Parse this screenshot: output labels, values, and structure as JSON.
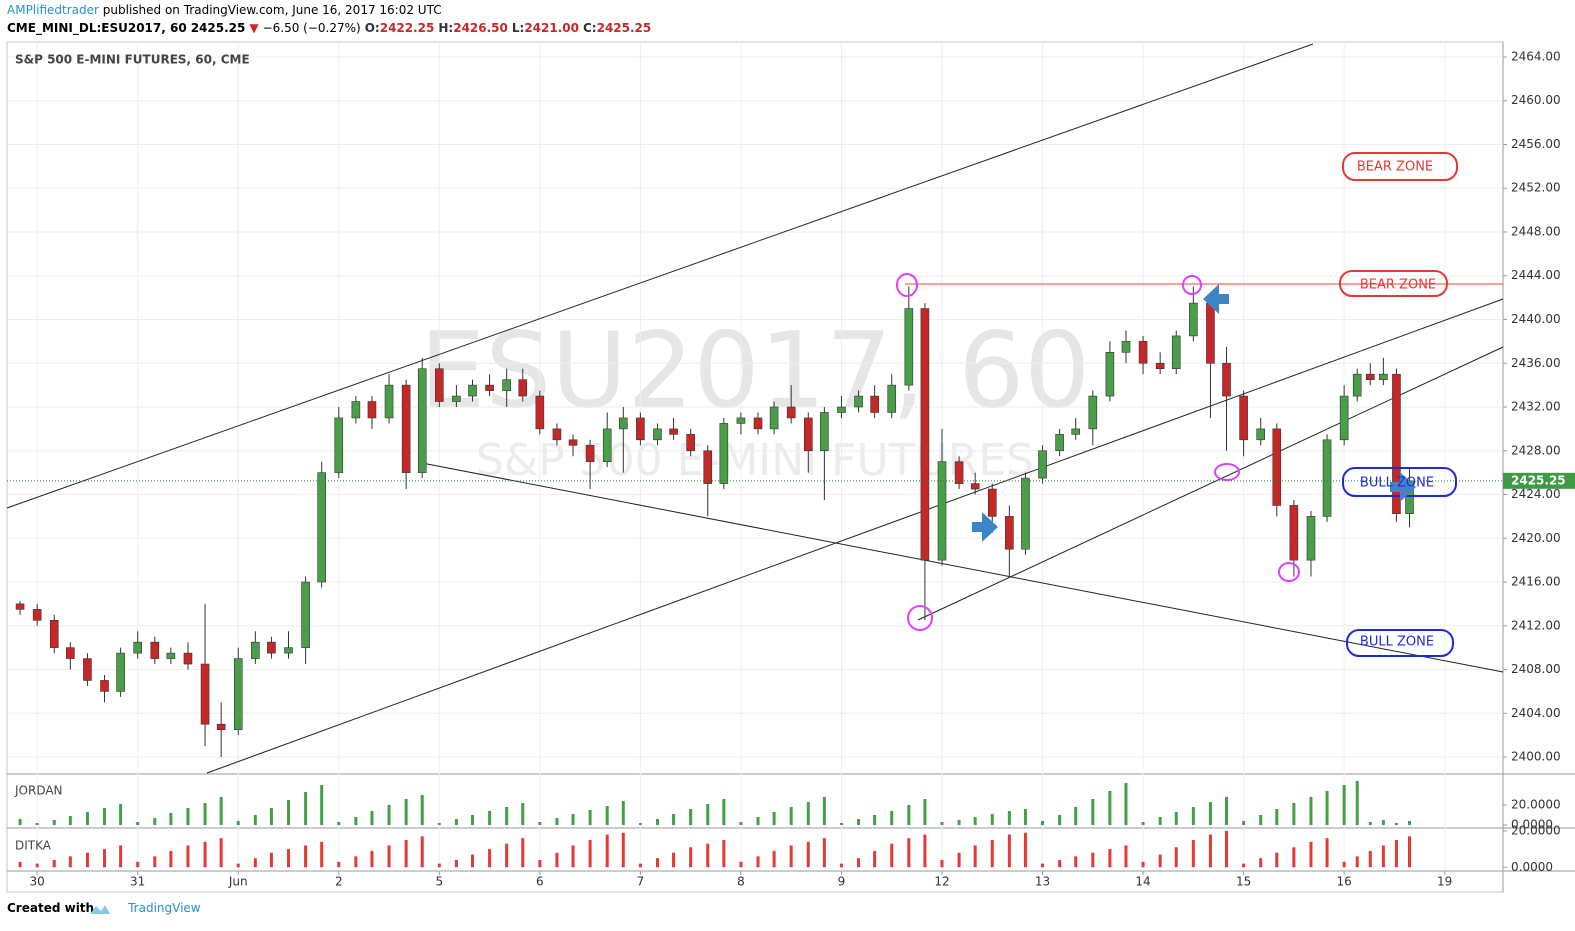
{
  "header": {
    "author": "AMPlifiedtrader",
    "published": "published on TradingView.com, June 16, 2017 16:02 UTC",
    "symbol": "CME_MINI_DL:ESU2017, 60",
    "last": "2425.25",
    "change_arrow": "▼",
    "change": "−6.50 (−0.27%)",
    "open_label": "O:",
    "open": "2422.25",
    "high_label": "H:",
    "high": "2426.50",
    "low_label": "L:",
    "low": "2421.00",
    "close_label": "C:",
    "close": "2425.25"
  },
  "chart_data": [
    {
      "type": "candlestick",
      "title": "S&P 500 E-MINI FUTURES, 60, CME",
      "watermark": "ESU2017, 60",
      "watermark_sub": "S&P 500 E-MINI FUTURES",
      "annotations": [
        "BEAR ZONE",
        "BEAR ZONE",
        "BULL ZONE",
        "BULL ZONE"
      ],
      "x": [
        -0.17,
        0,
        0.17,
        0.33,
        0.5,
        0.67,
        0.83,
        1,
        1.17,
        1.33,
        1.5,
        1.67,
        1.83,
        2,
        2.17,
        2.33,
        2.5,
        2.67,
        2.83,
        3,
        3.17,
        3.33,
        3.5,
        3.67,
        3.83,
        4,
        4.17,
        4.33,
        4.5,
        4.67,
        4.83,
        5,
        5.17,
        5.33,
        5.5,
        5.67,
        5.83,
        6,
        6.17,
        6.33,
        6.5,
        6.67,
        6.83,
        7,
        7.17,
        7.33,
        7.5,
        7.67,
        7.83,
        8,
        8.17,
        8.33,
        8.5,
        8.67,
        8.83,
        9,
        9.17,
        9.33,
        9.5,
        9.67,
        9.83,
        10,
        10.17,
        10.33,
        10.5,
        10.67,
        10.83,
        11,
        11.17,
        11.33,
        11.5,
        11.67,
        11.83,
        12,
        12.17,
        12.33,
        12.5,
        12.67,
        12.83,
        13,
        13.13,
        13.26,
        13.39,
        13.52,
        13.65
      ],
      "open": [
        2414,
        2413.5,
        2412.5,
        2410,
        2409,
        2407,
        2406,
        2409.5,
        2410.5,
        2409,
        2409.5,
        2408.5,
        2403,
        2402.5,
        2409,
        2410.5,
        2409.5,
        2410,
        2416,
        2426,
        2431,
        2432.5,
        2431,
        2434,
        2426,
        2435.5,
        2432.5,
        2433,
        2434,
        2433.5,
        2434.5,
        2433,
        2430,
        2429,
        2428.5,
        2427,
        2430,
        2431,
        2429,
        2430,
        2429.5,
        2428,
        2425,
        2430.5,
        2431,
        2430,
        2432,
        2431,
        2428,
        2431.5,
        2432,
        2433,
        2431.5,
        2434,
        2441,
        2418,
        2427,
        2425,
        2424.5,
        2422,
        2419,
        2425.5,
        2428,
        2429.5,
        2430,
        2433,
        2437,
        2438,
        2436,
        2435.5,
        2438.5,
        2441.5,
        2436,
        2433,
        2429,
        2430,
        2423,
        2418,
        2422,
        2429,
        2433,
        2435,
        2434.5,
        2435,
        2422.25
      ],
      "high": [
        2414.25,
        2414,
        2413,
        2410.5,
        2409.5,
        2407.5,
        2410,
        2411.5,
        2411,
        2410,
        2410.5,
        2414,
        2405,
        2410,
        2411.5,
        2411,
        2411.5,
        2416.5,
        2427,
        2432,
        2433,
        2433,
        2435,
        2434.5,
        2436.5,
        2436,
        2434,
        2434.5,
        2435,
        2435.5,
        2435.5,
        2433.5,
        2430.5,
        2429.5,
        2429,
        2431.5,
        2432,
        2431.5,
        2430.5,
        2431,
        2430,
        2428.5,
        2431,
        2431.5,
        2431.5,
        2432.5,
        2434,
        2431.5,
        2432,
        2433,
        2433.5,
        2434,
        2435,
        2443,
        2441.5,
        2430,
        2427.5,
        2426,
        2425,
        2423,
        2426,
        2428.5,
        2430,
        2431,
        2433.5,
        2438,
        2439,
        2438.5,
        2437,
        2439,
        2443,
        2441.5,
        2437.5,
        2433.5,
        2431,
        2430.5,
        2423.5,
        2422.5,
        2429.5,
        2434,
        2435.5,
        2436,
        2436.5,
        2435.5,
        2426.5
      ],
      "low": [
        2413,
        2412,
        2409.5,
        2408,
        2406.5,
        2405,
        2405.5,
        2409,
        2408.5,
        2408.5,
        2408,
        2401,
        2400,
        2402,
        2408.5,
        2409,
        2409,
        2408.5,
        2415.5,
        2425.5,
        2430.5,
        2430,
        2430.5,
        2424.5,
        2425.5,
        2432,
        2432,
        2432.5,
        2433,
        2432,
        2432.5,
        2429.5,
        2428.5,
        2427.5,
        2424.5,
        2426.5,
        2426,
        2428.5,
        2428.5,
        2429,
        2427.5,
        2422,
        2424.5,
        2429.5,
        2429.5,
        2429.5,
        2430.5,
        2426,
        2423.5,
        2431,
        2431.5,
        2431,
        2431,
        2433.5,
        2412.5,
        2417.5,
        2424.5,
        2424,
        2420.5,
        2416.5,
        2418.5,
        2425,
        2427.5,
        2429,
        2428.5,
        2432.5,
        2436,
        2435,
        2435,
        2435,
        2438,
        2431,
        2428,
        2427.5,
        2428.5,
        2422,
        2416.5,
        2416.5,
        2421.5,
        2428.5,
        2432.5,
        2434,
        2434,
        2421.5,
        2421
      ],
      "close": [
        2413.5,
        2412.5,
        2410,
        2409,
        2407,
        2406,
        2409.5,
        2410.5,
        2409,
        2409.5,
        2408.5,
        2403,
        2402.5,
        2409,
        2410.5,
        2409.5,
        2410,
        2416,
        2426,
        2431,
        2432.5,
        2431,
        2434,
        2426,
        2435.5,
        2432.5,
        2433,
        2434,
        2433.5,
        2434.5,
        2433,
        2430,
        2429,
        2428.5,
        2427,
        2430,
        2431,
        2429,
        2430,
        2429.5,
        2428,
        2425,
        2430.5,
        2431,
        2430,
        2432,
        2431,
        2428,
        2431.5,
        2432,
        2433,
        2431.5,
        2434,
        2441,
        2418,
        2427,
        2425,
        2424.5,
        2422,
        2419,
        2425.5,
        2428,
        2429.5,
        2430,
        2433,
        2437,
        2438,
        2436,
        2435.5,
        2438.5,
        2441.5,
        2436,
        2433,
        2429,
        2430,
        2423,
        2418,
        2422,
        2429,
        2433,
        2435,
        2434.5,
        2435,
        2422.25,
        2425.25
      ],
      "up_color": "#4a9e4a",
      "down_color": "#c62828",
      "xlim": [
        -0.3,
        14.58
      ],
      "xticks": [
        {
          "value": 0,
          "label": "30"
        },
        {
          "value": 1,
          "label": "31"
        },
        {
          "value": 2,
          "label": "Jun"
        },
        {
          "value": 3,
          "label": "2"
        },
        {
          "value": 4,
          "label": "5"
        },
        {
          "value": 5,
          "label": "6"
        },
        {
          "value": 6,
          "label": "7"
        },
        {
          "value": 7,
          "label": "8"
        },
        {
          "value": 8,
          "label": "9"
        },
        {
          "value": 9,
          "label": "12"
        },
        {
          "value": 10,
          "label": "13"
        },
        {
          "value": 11,
          "label": "14"
        },
        {
          "value": 12,
          "label": "15"
        },
        {
          "value": 13,
          "label": "16"
        },
        {
          "value": 14,
          "label": "19"
        }
      ],
      "ylim": [
        2398.54,
        2465.37
      ],
      "yticks": [
        {
          "value": 2400,
          "label": "2400.00"
        },
        {
          "value": 2404,
          "label": "2404.00"
        },
        {
          "value": 2408,
          "label": "2408.00"
        },
        {
          "value": 2412,
          "label": "2412.00"
        },
        {
          "value": 2416,
          "label": "2416.00"
        },
        {
          "value": 2420,
          "label": "2420.00"
        },
        {
          "value": 2424,
          "label": "2424.00"
        },
        {
          "value": 2428,
          "label": "2428.00"
        },
        {
          "value": 2432,
          "label": "2432.00"
        },
        {
          "value": 2436,
          "label": "2436.00"
        },
        {
          "value": 2440,
          "label": "2440.00"
        },
        {
          "value": 2444,
          "label": "2444.00"
        },
        {
          "value": 2448,
          "label": "2448.00"
        },
        {
          "value": 2452,
          "label": "2452.00"
        },
        {
          "value": 2456,
          "label": "2456.00"
        },
        {
          "value": 2460,
          "label": "2460.00"
        },
        {
          "value": 2464,
          "label": "2464.00"
        }
      ],
      "grid": true
    },
    {
      "type": "bar",
      "title": "JORDAN",
      "color": "#43a047",
      "values": [
        6,
        2,
        5,
        9,
        13,
        17,
        21,
        3,
        7,
        12,
        17,
        22,
        28,
        4,
        10,
        17,
        25,
        33,
        40,
        3,
        8,
        14,
        20,
        26,
        30,
        2,
        6,
        10,
        14,
        18,
        22,
        3,
        7,
        11,
        15,
        19,
        24,
        2,
        6,
        11,
        16,
        21,
        26,
        3,
        8,
        13,
        18,
        23,
        28,
        2,
        6,
        10,
        14,
        20,
        26,
        3,
        5,
        8,
        11,
        14,
        16,
        4,
        10,
        18,
        26,
        34,
        42,
        3,
        8,
        13,
        18,
        23,
        28,
        4,
        10,
        16,
        22,
        28,
        34,
        40,
        44,
        3,
        5,
        2,
        4
      ],
      "ylim": [
        -1,
        49
      ],
      "yticks": [
        {
          "value": 0,
          "label": "0.0000"
        },
        {
          "value": 20,
          "label": "20.0000"
        }
      ]
    },
    {
      "type": "bar",
      "title": "DITKA",
      "color": "#e53935",
      "values": [
        3,
        2,
        4,
        6,
        8,
        10,
        12,
        3,
        6,
        9,
        12,
        14,
        16,
        2,
        5,
        8,
        10,
        12,
        14,
        3,
        6,
        9,
        12,
        15,
        17,
        2,
        4,
        7,
        10,
        13,
        16,
        4,
        8,
        12,
        15,
        18,
        19,
        2,
        5,
        8,
        11,
        13,
        15,
        3,
        6,
        9,
        12,
        14,
        16,
        2,
        5,
        9,
        13,
        16,
        18,
        4,
        8,
        12,
        15,
        18,
        19,
        2,
        4,
        6,
        8,
        10,
        12,
        3,
        7,
        11,
        15,
        18,
        20,
        2,
        5,
        8,
        11,
        14,
        16,
        3,
        6,
        9,
        12,
        15,
        17
      ],
      "ylim": [
        -1.5,
        20.5
      ],
      "yticks": [
        {
          "value": 0,
          "label": "0.0000"
        },
        {
          "value": 20,
          "label": "20.0000"
        }
      ]
    }
  ],
  "footer": {
    "created": "Created with",
    "brand": "TradingView"
  }
}
